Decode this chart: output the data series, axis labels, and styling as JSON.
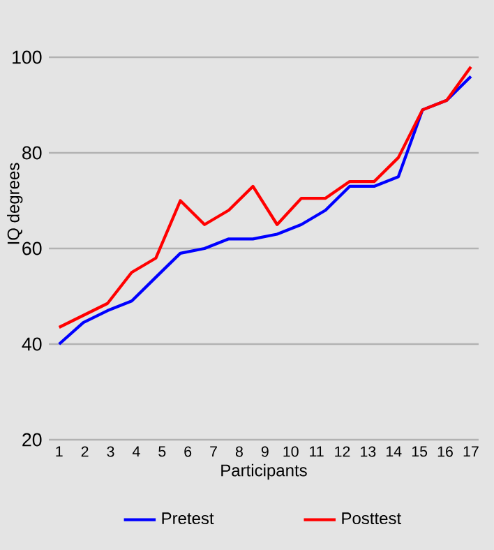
{
  "chart_data": {
    "type": "line",
    "xlabel": "Participants",
    "ylabel": "IQ degrees",
    "x": [
      1,
      1.94,
      2.88,
      3.82,
      4.76,
      5.71,
      6.65,
      7.59,
      8.53,
      9.47,
      10.41,
      11.35,
      12.29,
      13.24,
      14.18,
      15.12,
      16.06,
      17
    ],
    "series": [
      {
        "name": "Pretest",
        "color": "#0000ff",
        "values": [
          40,
          44.5,
          47,
          49,
          54,
          59,
          60,
          62,
          62,
          63,
          65,
          68,
          73,
          73,
          75,
          89,
          91,
          96
        ]
      },
      {
        "name": "Posttest",
        "color": "#ff0000",
        "values": [
          43.5,
          46,
          48.5,
          55,
          58,
          70,
          65,
          68,
          73,
          65,
          70.5,
          70.5,
          74,
          74,
          79,
          89,
          91,
          98
        ]
      }
    ],
    "xlim": [
      0.6,
      17.3
    ],
    "xticks": [
      1,
      2,
      3,
      4,
      5,
      6,
      7,
      8,
      9,
      10,
      11,
      12,
      13,
      14,
      15,
      16,
      17
    ],
    "ylim": [
      20,
      100
    ],
    "yticks": [
      20,
      40,
      60,
      80,
      100
    ],
    "grid": "y",
    "legend": "bottom",
    "marker": "none",
    "line_style": "solid"
  }
}
